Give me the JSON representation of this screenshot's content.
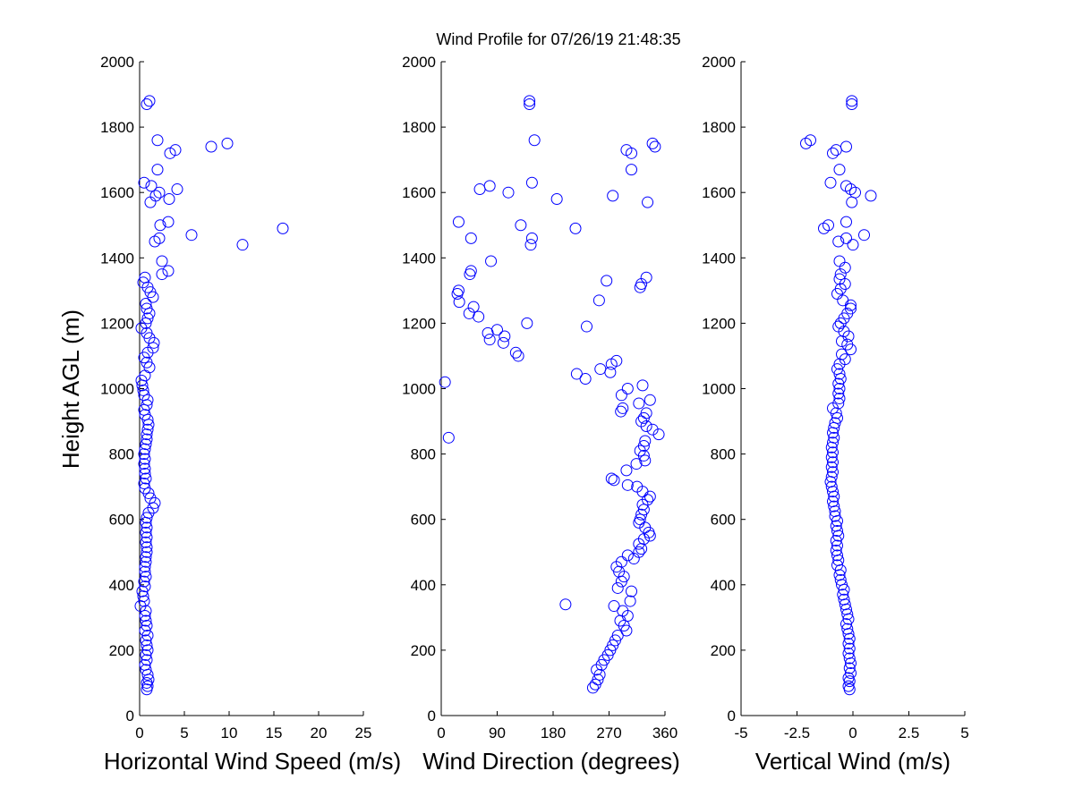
{
  "title": "Wind Profile for  07/26/19 21:48:35",
  "colors": {
    "marker": "#0000ff",
    "axis": "#000000",
    "background": "#ffffff"
  },
  "chart_data": [
    {
      "type": "scatter",
      "xlabel": "Horizontal Wind Speed (m/s)",
      "ylabel": "Height AGL (m)",
      "xlim": [
        0,
        25
      ],
      "ylim": [
        0,
        2000
      ],
      "xticks": [
        0,
        5,
        10,
        15,
        20,
        25
      ],
      "xtick_labels": [
        "0",
        "5",
        "10",
        "15",
        "20",
        "25"
      ],
      "yticks": [
        0,
        200,
        400,
        600,
        800,
        1000,
        1200,
        1400,
        1600,
        1800,
        2000
      ],
      "ytick_labels": [
        "0",
        "200",
        "400",
        "600",
        "800",
        "1000",
        "1200",
        "1400",
        "1600",
        "1800",
        "2000"
      ],
      "grid": false,
      "marker": "circle-open",
      "points": [
        [
          0.8,
          80
        ],
        [
          0.9,
          90
        ],
        [
          0.8,
          100
        ],
        [
          1.0,
          110
        ],
        [
          0.9,
          125
        ],
        [
          0.7,
          140
        ],
        [
          0.6,
          155
        ],
        [
          0.8,
          170
        ],
        [
          0.7,
          185
        ],
        [
          0.9,
          200
        ],
        [
          0.8,
          215
        ],
        [
          0.7,
          230
        ],
        [
          0.9,
          245
        ],
        [
          0.6,
          260
        ],
        [
          0.8,
          275
        ],
        [
          0.7,
          290
        ],
        [
          0.6,
          305
        ],
        [
          0.7,
          320
        ],
        [
          0.1,
          335
        ],
        [
          0.5,
          350
        ],
        [
          0.4,
          365
        ],
        [
          0.3,
          380
        ],
        [
          0.6,
          395
        ],
        [
          0.5,
          410
        ],
        [
          0.7,
          425
        ],
        [
          0.6,
          440
        ],
        [
          0.6,
          455
        ],
        [
          0.7,
          470
        ],
        [
          0.7,
          485
        ],
        [
          0.8,
          500
        ],
        [
          0.8,
          515
        ],
        [
          0.7,
          530
        ],
        [
          0.8,
          545
        ],
        [
          0.7,
          560
        ],
        [
          0.8,
          575
        ],
        [
          0.7,
          590
        ],
        [
          0.8,
          605
        ],
        [
          1.0,
          620
        ],
        [
          1.5,
          635
        ],
        [
          1.7,
          650
        ],
        [
          1.2,
          665
        ],
        [
          1.0,
          680
        ],
        [
          0.6,
          695
        ],
        [
          0.5,
          710
        ],
        [
          0.7,
          725
        ],
        [
          0.6,
          740
        ],
        [
          0.6,
          755
        ],
        [
          0.5,
          770
        ],
        [
          0.6,
          785
        ],
        [
          0.5,
          800
        ],
        [
          0.6,
          815
        ],
        [
          0.7,
          830
        ],
        [
          0.8,
          845
        ],
        [
          0.8,
          860
        ],
        [
          0.9,
          875
        ],
        [
          1.0,
          890
        ],
        [
          0.9,
          905
        ],
        [
          0.6,
          920
        ],
        [
          0.5,
          935
        ],
        [
          0.8,
          950
        ],
        [
          0.9,
          965
        ],
        [
          0.5,
          980
        ],
        [
          0.4,
          995
        ],
        [
          0.3,
          1010
        ],
        [
          0.2,
          1025
        ],
        [
          0.6,
          1040
        ],
        [
          1.1,
          1065
        ],
        [
          0.8,
          1080
        ],
        [
          0.5,
          1095
        ],
        [
          0.9,
          1110
        ],
        [
          1.5,
          1125
        ],
        [
          1.6,
          1140
        ],
        [
          1.1,
          1155
        ],
        [
          0.8,
          1170
        ],
        [
          0.2,
          1185
        ],
        [
          0.7,
          1200
        ],
        [
          0.9,
          1215
        ],
        [
          1.1,
          1230
        ],
        [
          0.8,
          1245
        ],
        [
          0.7,
          1260
        ],
        [
          1.5,
          1280
        ],
        [
          1.2,
          1295
        ],
        [
          0.9,
          1310
        ],
        [
          0.4,
          1325
        ],
        [
          0.6,
          1340
        ],
        [
          2.5,
          1350
        ],
        [
          3.2,
          1360
        ],
        [
          2.5,
          1390
        ],
        [
          11.5,
          1440
        ],
        [
          1.7,
          1450
        ],
        [
          2.2,
          1460
        ],
        [
          5.8,
          1470
        ],
        [
          16.0,
          1490
        ],
        [
          2.3,
          1500
        ],
        [
          3.2,
          1510
        ],
        [
          1.2,
          1570
        ],
        [
          3.3,
          1580
        ],
        [
          1.8,
          1590
        ],
        [
          2.2,
          1600
        ],
        [
          0.5,
          1630
        ],
        [
          4.2,
          1610
        ],
        [
          1.3,
          1620
        ],
        [
          2.0,
          1670
        ],
        [
          3.4,
          1720
        ],
        [
          4.0,
          1730
        ],
        [
          8.0,
          1740
        ],
        [
          9.8,
          1750
        ],
        [
          2.0,
          1760
        ],
        [
          0.8,
          1870
        ],
        [
          1.1,
          1880
        ]
      ]
    },
    {
      "type": "scatter",
      "xlabel": "Wind Direction (degrees)",
      "ylabel": "",
      "xlim": [
        0,
        360
      ],
      "ylim": [
        0,
        2000
      ],
      "xticks": [
        0,
        90,
        180,
        270,
        360
      ],
      "xtick_labels": [
        "0",
        "90",
        "180",
        "270",
        "360"
      ],
      "yticks": [
        0,
        200,
        400,
        600,
        800,
        1000,
        1200,
        1400,
        1600,
        1800,
        2000
      ],
      "ytick_labels": [
        "0",
        "200",
        "400",
        "600",
        "800",
        "1000",
        "1200",
        "1400",
        "1600",
        "1800",
        "2000"
      ],
      "grid": false,
      "marker": "circle-open",
      "points": [
        [
          244,
          85
        ],
        [
          248,
          95
        ],
        [
          252,
          110
        ],
        [
          255,
          125
        ],
        [
          250,
          140
        ],
        [
          258,
          155
        ],
        [
          262,
          170
        ],
        [
          268,
          185
        ],
        [
          272,
          200
        ],
        [
          276,
          215
        ],
        [
          280,
          230
        ],
        [
          284,
          245
        ],
        [
          298,
          260
        ],
        [
          294,
          275
        ],
        [
          288,
          290
        ],
        [
          300,
          305
        ],
        [
          292,
          320
        ],
        [
          278,
          335
        ],
        [
          200,
          340
        ],
        [
          304,
          350
        ],
        [
          306,
          380
        ],
        [
          284,
          390
        ],
        [
          290,
          410
        ],
        [
          294,
          425
        ],
        [
          286,
          440
        ],
        [
          282,
          455
        ],
        [
          290,
          470
        ],
        [
          310,
          480
        ],
        [
          300,
          490
        ],
        [
          318,
          500
        ],
        [
          322,
          510
        ],
        [
          318,
          525
        ],
        [
          326,
          540
        ],
        [
          336,
          550
        ],
        [
          334,
          560
        ],
        [
          328,
          575
        ],
        [
          318,
          590
        ],
        [
          320,
          600
        ],
        [
          322,
          615
        ],
        [
          326,
          630
        ],
        [
          324,
          645
        ],
        [
          332,
          660
        ],
        [
          336,
          670
        ],
        [
          324,
          685
        ],
        [
          315,
          700
        ],
        [
          300,
          705
        ],
        [
          278,
          720
        ],
        [
          274,
          725
        ],
        [
          298,
          750
        ],
        [
          314,
          770
        ],
        [
          328,
          780
        ],
        [
          326,
          795
        ],
        [
          320,
          810
        ],
        [
          326,
          825
        ],
        [
          328,
          840
        ],
        [
          350,
          860
        ],
        [
          340,
          875
        ],
        [
          330,
          885
        ],
        [
          322,
          900
        ],
        [
          326,
          910
        ],
        [
          330,
          925
        ],
        [
          289,
          930
        ],
        [
          292,
          940
        ],
        [
          318,
          955
        ],
        [
          336,
          965
        ],
        [
          290,
          980
        ],
        [
          300,
          1000
        ],
        [
          324,
          1010
        ],
        [
          6,
          1020
        ],
        [
          232,
          1030
        ],
        [
          218,
          1045
        ],
        [
          272,
          1050
        ],
        [
          256,
          1060
        ],
        [
          274,
          1075
        ],
        [
          282,
          1085
        ],
        [
          124,
          1100
        ],
        [
          120,
          1110
        ],
        [
          100,
          1140
        ],
        [
          78,
          1150
        ],
        [
          102,
          1160
        ],
        [
          75,
          1170
        ],
        [
          90,
          1180
        ],
        [
          234,
          1190
        ],
        [
          138,
          1200
        ],
        [
          60,
          1220
        ],
        [
          45,
          1230
        ],
        [
          52,
          1250
        ],
        [
          29,
          1265
        ],
        [
          254,
          1270
        ],
        [
          26,
          1290
        ],
        [
          28,
          1300
        ],
        [
          320,
          1310
        ],
        [
          322,
          1320
        ],
        [
          266,
          1330
        ],
        [
          330,
          1340
        ],
        [
          46,
          1350
        ],
        [
          48,
          1360
        ],
        [
          80,
          1390
        ],
        [
          144,
          1440
        ],
        [
          146,
          1460
        ],
        [
          48,
          1460
        ],
        [
          216,
          1490
        ],
        [
          128,
          1500
        ],
        [
          28,
          1510
        ],
        [
          332,
          1570
        ],
        [
          186,
          1580
        ],
        [
          276,
          1590
        ],
        [
          108,
          1600
        ],
        [
          62,
          1610
        ],
        [
          78,
          1620
        ],
        [
          146,
          1630
        ],
        [
          306,
          1670
        ],
        [
          306,
          1720
        ],
        [
          298,
          1730
        ],
        [
          344,
          1740
        ],
        [
          340,
          1750
        ],
        [
          150,
          1760
        ],
        [
          142,
          1870
        ],
        [
          142,
          1880
        ],
        [
          12,
          850
        ]
      ]
    },
    {
      "type": "scatter",
      "xlabel": "Vertical Wind (m/s)",
      "ylabel": "",
      "xlim": [
        -5,
        5
      ],
      "ylim": [
        0,
        2000
      ],
      "xticks": [
        -5,
        -2.5,
        0,
        2.5,
        5
      ],
      "xtick_labels": [
        "-5",
        "-2.5",
        "0",
        "2.5",
        "5"
      ],
      "yticks": [
        0,
        200,
        400,
        600,
        800,
        1000,
        1200,
        1400,
        1600,
        1800,
        2000
      ],
      "ytick_labels": [
        "0",
        "200",
        "400",
        "600",
        "800",
        "1000",
        "1200",
        "1400",
        "1600",
        "1800",
        "2000"
      ],
      "grid": false,
      "marker": "circle-open",
      "points": [
        [
          -0.15,
          80
        ],
        [
          -0.2,
          90
        ],
        [
          -0.15,
          105
        ],
        [
          -0.2,
          115
        ],
        [
          -0.1,
          130
        ],
        [
          -0.15,
          145
        ],
        [
          -0.1,
          160
        ],
        [
          -0.15,
          175
        ],
        [
          -0.2,
          190
        ],
        [
          -0.15,
          205
        ],
        [
          -0.2,
          220
        ],
        [
          -0.15,
          235
        ],
        [
          -0.2,
          250
        ],
        [
          -0.25,
          265
        ],
        [
          -0.3,
          280
        ],
        [
          -0.2,
          295
        ],
        [
          -0.25,
          310
        ],
        [
          -0.3,
          325
        ],
        [
          -0.35,
          340
        ],
        [
          -0.4,
          355
        ],
        [
          -0.45,
          370
        ],
        [
          -0.4,
          385
        ],
        [
          -0.5,
          400
        ],
        [
          -0.55,
          415
        ],
        [
          -0.6,
          430
        ],
        [
          -0.55,
          445
        ],
        [
          -0.7,
          460
        ],
        [
          -0.65,
          475
        ],
        [
          -0.7,
          490
        ],
        [
          -0.75,
          505
        ],
        [
          -0.7,
          520
        ],
        [
          -0.75,
          535
        ],
        [
          -0.65,
          550
        ],
        [
          -0.7,
          565
        ],
        [
          -0.75,
          580
        ],
        [
          -0.7,
          595
        ],
        [
          -0.8,
          610
        ],
        [
          -0.8,
          625
        ],
        [
          -0.85,
          640
        ],
        [
          -0.9,
          655
        ],
        [
          -0.85,
          670
        ],
        [
          -0.9,
          685
        ],
        [
          -0.95,
          700
        ],
        [
          -1.0,
          715
        ],
        [
          -0.95,
          730
        ],
        [
          -0.9,
          745
        ],
        [
          -0.95,
          760
        ],
        [
          -0.9,
          775
        ],
        [
          -0.95,
          790
        ],
        [
          -0.9,
          805
        ],
        [
          -0.95,
          820
        ],
        [
          -0.9,
          835
        ],
        [
          -0.85,
          850
        ],
        [
          -0.9,
          865
        ],
        [
          -0.85,
          880
        ],
        [
          -0.8,
          895
        ],
        [
          -0.7,
          910
        ],
        [
          -0.75,
          925
        ],
        [
          -0.9,
          940
        ],
        [
          -0.65,
          955
        ],
        [
          -0.6,
          970
        ],
        [
          -0.65,
          985
        ],
        [
          -0.6,
          1000
        ],
        [
          -0.65,
          1015
        ],
        [
          -0.55,
          1030
        ],
        [
          -0.6,
          1045
        ],
        [
          -0.7,
          1060
        ],
        [
          -0.6,
          1075
        ],
        [
          -0.35,
          1090
        ],
        [
          -0.5,
          1105
        ],
        [
          -0.1,
          1120
        ],
        [
          -0.25,
          1135
        ],
        [
          -0.5,
          1145
        ],
        [
          -0.2,
          1160
        ],
        [
          -0.4,
          1175
        ],
        [
          -0.65,
          1190
        ],
        [
          -0.55,
          1200
        ],
        [
          -0.4,
          1215
        ],
        [
          -0.25,
          1230
        ],
        [
          -0.1,
          1245
        ],
        [
          -0.1,
          1255
        ],
        [
          -0.45,
          1270
        ],
        [
          -0.7,
          1290
        ],
        [
          -0.55,
          1305
        ],
        [
          -0.35,
          1320
        ],
        [
          -0.6,
          1335
        ],
        [
          -0.55,
          1350
        ],
        [
          -0.35,
          1370
        ],
        [
          -0.6,
          1390
        ],
        [
          0.0,
          1440
        ],
        [
          -0.65,
          1450
        ],
        [
          -0.3,
          1460
        ],
        [
          0.5,
          1470
        ],
        [
          -1.3,
          1490
        ],
        [
          -1.1,
          1500
        ],
        [
          -0.3,
          1510
        ],
        [
          -0.05,
          1570
        ],
        [
          0.8,
          1590
        ],
        [
          0.1,
          1600
        ],
        [
          -0.3,
          1620
        ],
        [
          -1.0,
          1630
        ],
        [
          -0.1,
          1610
        ],
        [
          -0.6,
          1670
        ],
        [
          -0.9,
          1720
        ],
        [
          -0.75,
          1730
        ],
        [
          -0.3,
          1740
        ],
        [
          -2.1,
          1750
        ],
        [
          -1.9,
          1760
        ],
        [
          -0.05,
          1870
        ],
        [
          -0.05,
          1880
        ]
      ]
    }
  ]
}
